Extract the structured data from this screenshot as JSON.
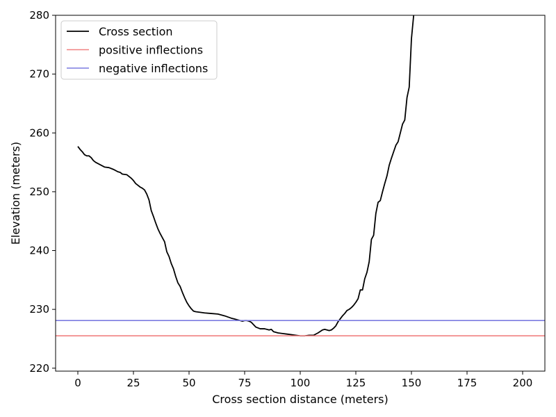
{
  "chart_data": {
    "type": "line",
    "xlabel": "Cross section distance (meters)",
    "ylabel": "Elevation (meters)",
    "xlim": [
      -10,
      210
    ],
    "ylim": [
      219.5,
      280
    ],
    "xticks": [
      0,
      25,
      50,
      75,
      100,
      125,
      150,
      175,
      200
    ],
    "yticks": [
      220,
      230,
      240,
      250,
      260,
      270,
      280
    ],
    "grid": false,
    "legend_position": "top-left",
    "series": [
      {
        "name": "Cross section",
        "color": "#000000",
        "x": [
          0,
          1,
          2,
          3,
          4,
          5,
          6,
          7,
          8,
          10,
          12,
          14,
          16,
          18,
          19,
          20,
          22,
          24,
          25,
          26,
          27,
          28,
          29,
          30,
          31,
          32,
          33,
          34,
          35,
          36,
          37,
          38,
          39,
          40,
          41,
          42,
          43,
          44,
          45,
          46,
          47,
          48,
          49,
          50,
          51,
          52,
          53,
          55,
          57,
          60,
          63,
          66,
          69,
          70,
          72,
          74,
          75,
          76,
          77,
          78,
          79,
          80,
          82,
          84,
          86,
          87,
          88,
          90,
          92,
          94,
          96,
          98,
          100,
          102,
          104,
          106,
          108,
          110,
          111,
          112,
          113,
          114,
          115,
          116,
          117,
          118,
          119,
          120,
          121,
          122,
          123,
          124,
          125,
          126,
          127,
          128,
          129,
          130,
          131,
          132,
          133,
          134,
          135,
          136,
          137,
          138,
          139,
          140,
          141,
          142,
          143,
          144,
          145,
          146,
          147,
          148,
          149,
          150,
          151
        ],
        "y": [
          257.7,
          257.2,
          256.8,
          256.3,
          256.1,
          256.1,
          255.8,
          255.3,
          255.0,
          254.6,
          254.2,
          254.1,
          253.8,
          253.4,
          253.3,
          253.0,
          252.9,
          252.3,
          251.9,
          251.4,
          251.1,
          250.8,
          250.6,
          250.3,
          249.6,
          248.6,
          246.8,
          245.8,
          244.7,
          243.7,
          242.9,
          242.2,
          241.5,
          239.8,
          239.0,
          237.8,
          236.9,
          235.6,
          234.5,
          233.9,
          232.9,
          232.0,
          231.2,
          230.6,
          230.1,
          229.7,
          229.6,
          229.5,
          229.4,
          229.3,
          229.2,
          228.9,
          228.5,
          228.4,
          228.2,
          228.0,
          228.1,
          228.1,
          228.0,
          227.8,
          227.4,
          227.0,
          226.7,
          226.7,
          226.5,
          226.6,
          226.2,
          226.0,
          225.9,
          225.8,
          225.7,
          225.6,
          225.5,
          225.5,
          225.6,
          225.6,
          226.0,
          226.5,
          226.6,
          226.5,
          226.4,
          226.5,
          226.8,
          227.2,
          227.9,
          228.4,
          228.9,
          229.3,
          229.8,
          230.0,
          230.3,
          230.7,
          231.2,
          231.8,
          233.3,
          233.3,
          235.2,
          236.3,
          238.1,
          241.9,
          242.6,
          246.3,
          248.2,
          248.5,
          250.0,
          251.4,
          252.7,
          254.5,
          255.7,
          256.8,
          257.9,
          258.5,
          260.0,
          261.5,
          262.2,
          266.0,
          267.8,
          276.0,
          280.0
        ]
      },
      {
        "name": "positive inflections",
        "color": "#f08080",
        "type": "hline",
        "y": 225.5
      },
      {
        "name": "negative inflections",
        "color": "#7b7be0",
        "type": "hline",
        "y": 228.1
      }
    ]
  }
}
